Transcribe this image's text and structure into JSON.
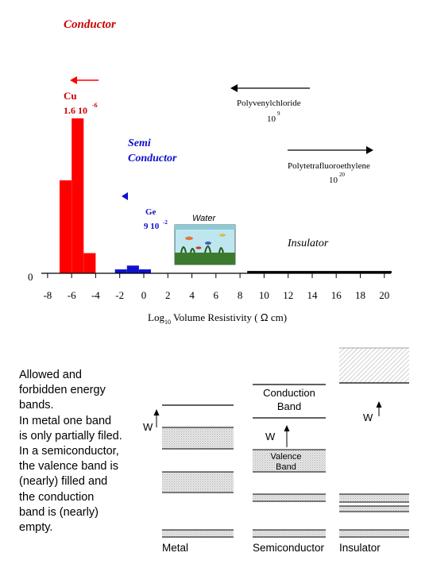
{
  "top_chart": {
    "title": "Conductor",
    "cu": {
      "name": "Cu",
      "value": "1.6 10",
      "exp": "-6"
    },
    "semi": {
      "line1": "Semi",
      "line2": "Conductor"
    },
    "ge": {
      "name": "Ge",
      "value": "9 10",
      "exp": "-2"
    },
    "water_label": "Water",
    "pvc": {
      "name": "Polyvenylchloride",
      "value": "10",
      "exp": "9"
    },
    "ptfe": {
      "name": "Polytetrafluoroethylene",
      "value": "10",
      "exp": "20"
    },
    "insulator_label": "Insulator",
    "y_zero_label": "0",
    "xlabel_log": "Log",
    "xlabel_sub": "10",
    "xlabel_rest": " Volume Resistivity ( ",
    "xlabel_omega": "Ω",
    "xlabel_unit": " cm)",
    "colors": {
      "title": "#cc0000",
      "conductor": "#ff0000",
      "semi": "#1010cc",
      "insulator": "#000000"
    }
  },
  "chart_data": {
    "type": "bar",
    "xlabel": "Log10 Volume Resistivity ( Ω cm)",
    "xlim": [
      -9,
      21
    ],
    "x_ticks": [
      -8,
      -6,
      -4,
      -2,
      0,
      2,
      4,
      6,
      8,
      10,
      12,
      14,
      16,
      18,
      20
    ],
    "histogram": [
      {
        "group": "Conductor",
        "x_from": -7,
        "x_to": -6,
        "height": 0.6
      },
      {
        "group": "Conductor",
        "x_from": -6,
        "x_to": -5,
        "height": 1.0
      },
      {
        "group": "Conductor",
        "x_from": -5,
        "x_to": -4,
        "height": 0.13
      },
      {
        "group": "Semi Conductor",
        "x_from": -2.4,
        "x_to": -1.4,
        "height": 0.025
      },
      {
        "group": "Semi Conductor",
        "x_from": -1.4,
        "x_to": -0.4,
        "height": 0.05
      },
      {
        "group": "Semi Conductor",
        "x_from": -0.4,
        "x_to": 0.6,
        "height": 0.025
      },
      {
        "group": "Insulator",
        "x_from": 8.6,
        "x_to": 20.6,
        "height": 0.015
      }
    ]
  },
  "description": {
    "text": "Allowed and\nforbidden energy\nbands.\nIn metal one band\nis only partially filed.\nIn a semiconductor,\nthe valence band is\n(nearly) filled and\nthe conduction\nband is (nearly)\nempty."
  },
  "bands": {
    "w_label": "W",
    "conduction_line1": "Conduction",
    "conduction_line2": "Band",
    "valence_line1": "Valence",
    "valence_line2": "Band",
    "metal_label": "Metal",
    "semi_label": "Semiconductor",
    "insulator_label": "Insulator"
  }
}
